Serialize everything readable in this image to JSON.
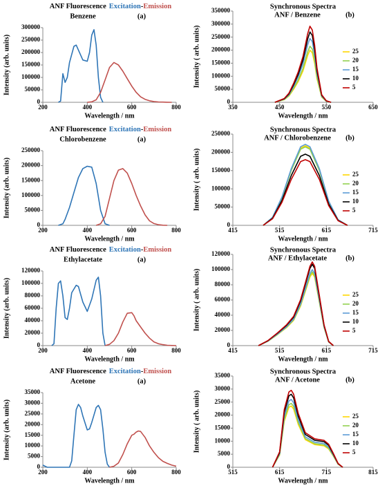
{
  "chart_data": [
    {
      "type": "line",
      "title": "ANF Fluorescence",
      "title_separator": "-",
      "subtitle": "Benzene",
      "panel_label": "(a)",
      "xlabel": "Wavelength / nm",
      "ylabel": "Intensity (arb. units)",
      "xlim": [
        200,
        800
      ],
      "xticks": [
        200,
        400,
        600,
        800
      ],
      "ylim": [
        0,
        300000
      ],
      "yticks": [
        0,
        50000,
        100000,
        150000,
        200000,
        250000,
        300000
      ],
      "series": [
        {
          "name": "Excitation",
          "color": "#2e75b6",
          "x": [
            270,
            280,
            290,
            300,
            310,
            320,
            340,
            350,
            360,
            380,
            400,
            410,
            420,
            430,
            440,
            450,
            460,
            470
          ],
          "values": [
            0,
            5000,
            115000,
            80000,
            100000,
            160000,
            225000,
            230000,
            210000,
            170000,
            165000,
            200000,
            270000,
            292000,
            230000,
            100000,
            20000,
            0
          ]
        },
        {
          "name": "Emission",
          "color": "#c0504d",
          "x": [
            400,
            420,
            440,
            460,
            480,
            500,
            520,
            540,
            560,
            580,
            600,
            620,
            640,
            660,
            680,
            700,
            720,
            740,
            760,
            780
          ],
          "values": [
            0,
            2000,
            10000,
            40000,
            90000,
            140000,
            160000,
            150000,
            125000,
            95000,
            65000,
            40000,
            22000,
            12000,
            6000,
            3000,
            1500,
            800,
            400,
            0
          ]
        }
      ]
    },
    {
      "type": "line",
      "title": "Synchronous Spectra",
      "subtitle": "ANF / Benzene",
      "panel_label": "(b)",
      "xlabel": "Wavelength / nm",
      "ylabel": "Intensity ( arb. units)",
      "xlim": [
        350,
        650
      ],
      "xticks": [
        350,
        450,
        550,
        650
      ],
      "ylim": [
        0,
        350000
      ],
      "yticks": [
        0,
        50000,
        100000,
        150000,
        200000,
        250000,
        300000,
        350000
      ],
      "x": [
        440,
        460,
        470,
        480,
        490,
        500,
        505,
        510,
        515,
        520,
        525,
        530,
        540,
        550,
        560
      ],
      "series": [
        {
          "name": "25",
          "color": "#ffd700",
          "values": [
            0,
            10000,
            24000,
            50000,
            80000,
            120000,
            150000,
            180000,
            200000,
            190000,
            150000,
            90000,
            20000,
            4000,
            0
          ]
        },
        {
          "name": "20",
          "color": "#92d050",
          "values": [
            0,
            10750,
            25800,
            53750,
            86000,
            129000,
            161250,
            193500,
            215000,
            204250,
            161250,
            96750,
            21500,
            4300,
            0
          ]
        },
        {
          "name": "15",
          "color": "#5b9bd5",
          "values": [
            0,
            12250,
            29400,
            61250,
            98000,
            147000,
            183750,
            220500,
            245000,
            232750,
            183750,
            110250,
            24500,
            4900,
            0
          ]
        },
        {
          "name": "10",
          "color": "#000000",
          "values": [
            0,
            13500,
            32400,
            67500,
            108000,
            162000,
            202500,
            243000,
            270000,
            256500,
            202500,
            121500,
            27000,
            5400,
            0
          ]
        },
        {
          "name": "5",
          "color": "#c00000",
          "values": [
            0,
            14600,
            35040,
            73000,
            116800,
            175200,
            219000,
            262800,
            292000,
            277400,
            219000,
            131400,
            29200,
            5840,
            0
          ]
        }
      ]
    },
    {
      "type": "line",
      "title": "ANF Fluorescence",
      "title_separator": "-",
      "subtitle": "Chlorobenzene",
      "panel_label": "(a)",
      "xlabel": "Wavelength / nm",
      "ylabel": "Intensity (arb. units)",
      "xlim": [
        200,
        800
      ],
      "xticks": [
        200,
        400,
        600,
        800
      ],
      "ylim": [
        0,
        250000
      ],
      "yticks": [
        0,
        50000,
        100000,
        150000,
        200000,
        250000
      ],
      "series": [
        {
          "name": "Excitation",
          "color": "#2e75b6",
          "x": [
            270,
            290,
            300,
            320,
            340,
            360,
            380,
            400,
            420,
            440,
            460,
            480,
            500
          ],
          "values": [
            0,
            5000,
            20000,
            60000,
            110000,
            160000,
            190000,
            198000,
            195000,
            140000,
            50000,
            5000,
            0
          ]
        },
        {
          "name": "Emission",
          "color": "#c0504d",
          "x": [
            440,
            460,
            480,
            500,
            520,
            540,
            560,
            580,
            600,
            620,
            640,
            660,
            680,
            700,
            720,
            740,
            760
          ],
          "values": [
            0,
            5000,
            30000,
            90000,
            150000,
            185000,
            190000,
            175000,
            140000,
            100000,
            65000,
            35000,
            15000,
            6000,
            2000,
            500,
            0
          ]
        }
      ]
    },
    {
      "type": "line",
      "title": "Synchronous Spectra",
      "subtitle": "ANF / Chlorobenzene",
      "panel_label": "(b)",
      "xlabel": "Wavelength / nm",
      "ylabel": "Intensity ( arb. units)",
      "xlim": [
        415,
        715
      ],
      "xticks": [
        415,
        515,
        615,
        715
      ],
      "ylim": [
        0,
        250000
      ],
      "yticks": [
        0,
        50000,
        100000,
        150000,
        200000,
        250000
      ],
      "x": [
        480,
        500,
        520,
        540,
        560,
        570,
        580,
        600,
        620,
        640,
        660
      ],
      "series": [
        {
          "name": "25",
          "color": "#ffd700",
          "values": [
            0,
            21800,
            76300,
            152600,
            211460,
            218000,
            211460,
            152600,
            65400,
            15260,
            0
          ]
        },
        {
          "name": "20",
          "color": "#92d050",
          "values": [
            0,
            21500,
            75250,
            150500,
            208550,
            215000,
            208550,
            150500,
            64500,
            15050,
            0
          ]
        },
        {
          "name": "15",
          "color": "#5b9bd5",
          "values": [
            0,
            22200,
            77700,
            155400,
            215340,
            222000,
            215340,
            155400,
            66600,
            15540,
            0
          ]
        },
        {
          "name": "10",
          "color": "#000000",
          "values": [
            0,
            19500,
            68250,
            136500,
            189150,
            195000,
            189150,
            136500,
            58500,
            13650,
            0
          ]
        },
        {
          "name": "5",
          "color": "#c00000",
          "values": [
            0,
            18000,
            63000,
            126000,
            174600,
            180000,
            174600,
            126000,
            54000,
            12600,
            0
          ]
        }
      ]
    },
    {
      "type": "line",
      "title": "ANF Fluorescence",
      "title_separator": "-",
      "subtitle": "Ethylacetate",
      "panel_label": "(a)",
      "xlabel": "Wavelength / nm",
      "ylabel": "Intensity (arb. units)",
      "xlim": [
        200,
        800
      ],
      "xticks": [
        200,
        400,
        600,
        800
      ],
      "ylim": [
        0,
        120000
      ],
      "yticks": [
        0,
        20000,
        40000,
        60000,
        80000,
        100000,
        120000
      ],
      "series": [
        {
          "name": "Excitation",
          "color": "#2e75b6",
          "x": [
            240,
            250,
            260,
            270,
            280,
            290,
            300,
            310,
            320,
            330,
            350,
            360,
            380,
            400,
            420,
            440,
            450,
            460,
            470,
            480
          ],
          "values": [
            0,
            3000,
            60000,
            100000,
            104000,
            80000,
            45000,
            42000,
            60000,
            85000,
            97000,
            95000,
            70000,
            55000,
            75000,
            105000,
            110000,
            80000,
            20000,
            0
          ]
        },
        {
          "name": "Emission",
          "color": "#c0504d",
          "x": [
            480,
            500,
            520,
            540,
            560,
            580,
            600,
            610,
            620,
            640,
            660,
            680,
            700,
            720,
            740,
            760,
            780,
            800
          ],
          "values": [
            0,
            2000,
            8000,
            20000,
            38000,
            52000,
            53000,
            48000,
            40000,
            30000,
            20000,
            12000,
            6000,
            3000,
            1500,
            600,
            200,
            0
          ]
        }
      ]
    },
    {
      "type": "line",
      "title": "Synchronous Spectra",
      "subtitle": "ANF / Ethylacetate",
      "panel_label": "(b)",
      "xlabel": "Wavelength / nm",
      "ylabel": "Intensity ( arb. units)",
      "xlim": [
        415,
        715
      ],
      "xticks": [
        415,
        515,
        615,
        715
      ],
      "ylim": [
        0,
        120000
      ],
      "yticks": [
        0,
        20000,
        40000,
        60000,
        80000,
        100000,
        120000
      ],
      "x": [
        470,
        490,
        510,
        530,
        545,
        560,
        570,
        580,
        585,
        590,
        600,
        610,
        620,
        630
      ],
      "series": [
        {
          "name": "25",
          "color": "#ffd700",
          "values": [
            0,
            5700,
            14250,
            23750,
            33250,
            52250,
            71250,
            90250,
            95000,
            90250,
            57000,
            23750,
            4750,
            0
          ]
        },
        {
          "name": "20",
          "color": "#92d050",
          "values": [
            0,
            5820,
            14550,
            24250,
            33950,
            53350,
            72750,
            92150,
            97000,
            92150,
            58200,
            24250,
            4850,
            0
          ]
        },
        {
          "name": "15",
          "color": "#5b9bd5",
          "values": [
            0,
            6000,
            15000,
            25000,
            35000,
            55000,
            75000,
            95000,
            100000,
            95000,
            60000,
            25000,
            5000,
            0
          ]
        },
        {
          "name": "10",
          "color": "#000000",
          "values": [
            0,
            6420,
            16050,
            26750,
            37450,
            58850,
            80250,
            101650,
            107000,
            101650,
            64200,
            26750,
            5350,
            0
          ]
        },
        {
          "name": "5",
          "color": "#c00000",
          "values": [
            0,
            6600,
            16500,
            27500,
            38500,
            60500,
            82500,
            104500,
            110000,
            104500,
            66000,
            27500,
            5500,
            0
          ]
        }
      ]
    },
    {
      "type": "line",
      "title": "ANF Fluorescence",
      "title_separator": "-",
      "subtitle": "Acetone",
      "panel_label": "(a)",
      "xlabel": "Wavelength / nm",
      "ylabel": "Intensity (arb. units)",
      "xlim": [
        200,
        800
      ],
      "xticks": [
        200,
        400,
        600,
        800
      ],
      "ylim": [
        0,
        35000
      ],
      "yticks": [
        0,
        5000,
        10000,
        15000,
        20000,
        25000,
        30000,
        35000
      ],
      "series": [
        {
          "name": "Excitation",
          "color": "#2e75b6",
          "x": [
            200,
            210,
            220,
            320,
            330,
            340,
            350,
            360,
            370,
            380,
            400,
            410,
            420,
            440,
            450,
            460,
            470,
            480,
            490,
            500
          ],
          "values": [
            1000,
            500,
            0,
            0,
            3000,
            15000,
            27000,
            29500,
            28000,
            24000,
            17500,
            18000,
            21000,
            28000,
            29000,
            27000,
            18000,
            7000,
            1500,
            0
          ]
        },
        {
          "name": "Emission",
          "color": "#c0504d",
          "x": [
            500,
            520,
            540,
            560,
            580,
            600,
            610,
            620,
            630,
            640,
            660,
            680,
            700,
            720,
            740,
            760,
            780,
            800
          ],
          "values": [
            0,
            500,
            2000,
            6000,
            11000,
            15000,
            15500,
            16500,
            17000,
            16800,
            14000,
            10000,
            7000,
            4500,
            2800,
            1800,
            1000,
            500
          ]
        }
      ]
    },
    {
      "type": "line",
      "title": "Synchronous Spectra",
      "subtitle": "ANF / Acetone",
      "panel_label": "(b)",
      "xlabel": "Wavelength / nm",
      "ylabel": "Intensity ( arb. units)",
      "xlim": [
        515,
        815
      ],
      "xticks": [
        515,
        615,
        715,
        815
      ],
      "ylim": [
        0,
        35000
      ],
      "yticks": [
        0,
        5000,
        10000,
        15000,
        20000,
        25000,
        30000,
        35000
      ],
      "x": [
        600,
        615,
        625,
        635,
        640,
        645,
        655,
        670,
        690,
        710,
        720,
        730,
        740,
        750
      ],
      "series": [
        {
          "name": "25",
          "color": "#ffd700",
          "values": [
            0,
            4700,
            17625,
            23030,
            23500,
            22325,
            16450,
            10575,
            8695,
            8225,
            7050,
            4230,
            1175,
            0
          ]
        },
        {
          "name": "20",
          "color": "#92d050",
          "values": [
            0,
            4900,
            18375,
            24010,
            24500,
            23275,
            17150,
            11025,
            9065,
            8575,
            7350,
            4410,
            1225,
            0
          ]
        },
        {
          "name": "15",
          "color": "#5b9bd5",
          "values": [
            0,
            5200,
            19500,
            25480,
            26000,
            24700,
            18200,
            11700,
            9620,
            9100,
            7800,
            4680,
            1300,
            0
          ]
        },
        {
          "name": "10",
          "color": "#000000",
          "values": [
            0,
            5600,
            21000,
            27440,
            28000,
            26600,
            19600,
            12600,
            10360,
            9800,
            8400,
            5040,
            1400,
            0
          ]
        },
        {
          "name": "5",
          "color": "#c00000",
          "values": [
            0,
            5900,
            22125,
            28910,
            29500,
            28025,
            20650,
            13275,
            10915,
            10325,
            8850,
            5310,
            1475,
            0
          ]
        }
      ]
    }
  ]
}
